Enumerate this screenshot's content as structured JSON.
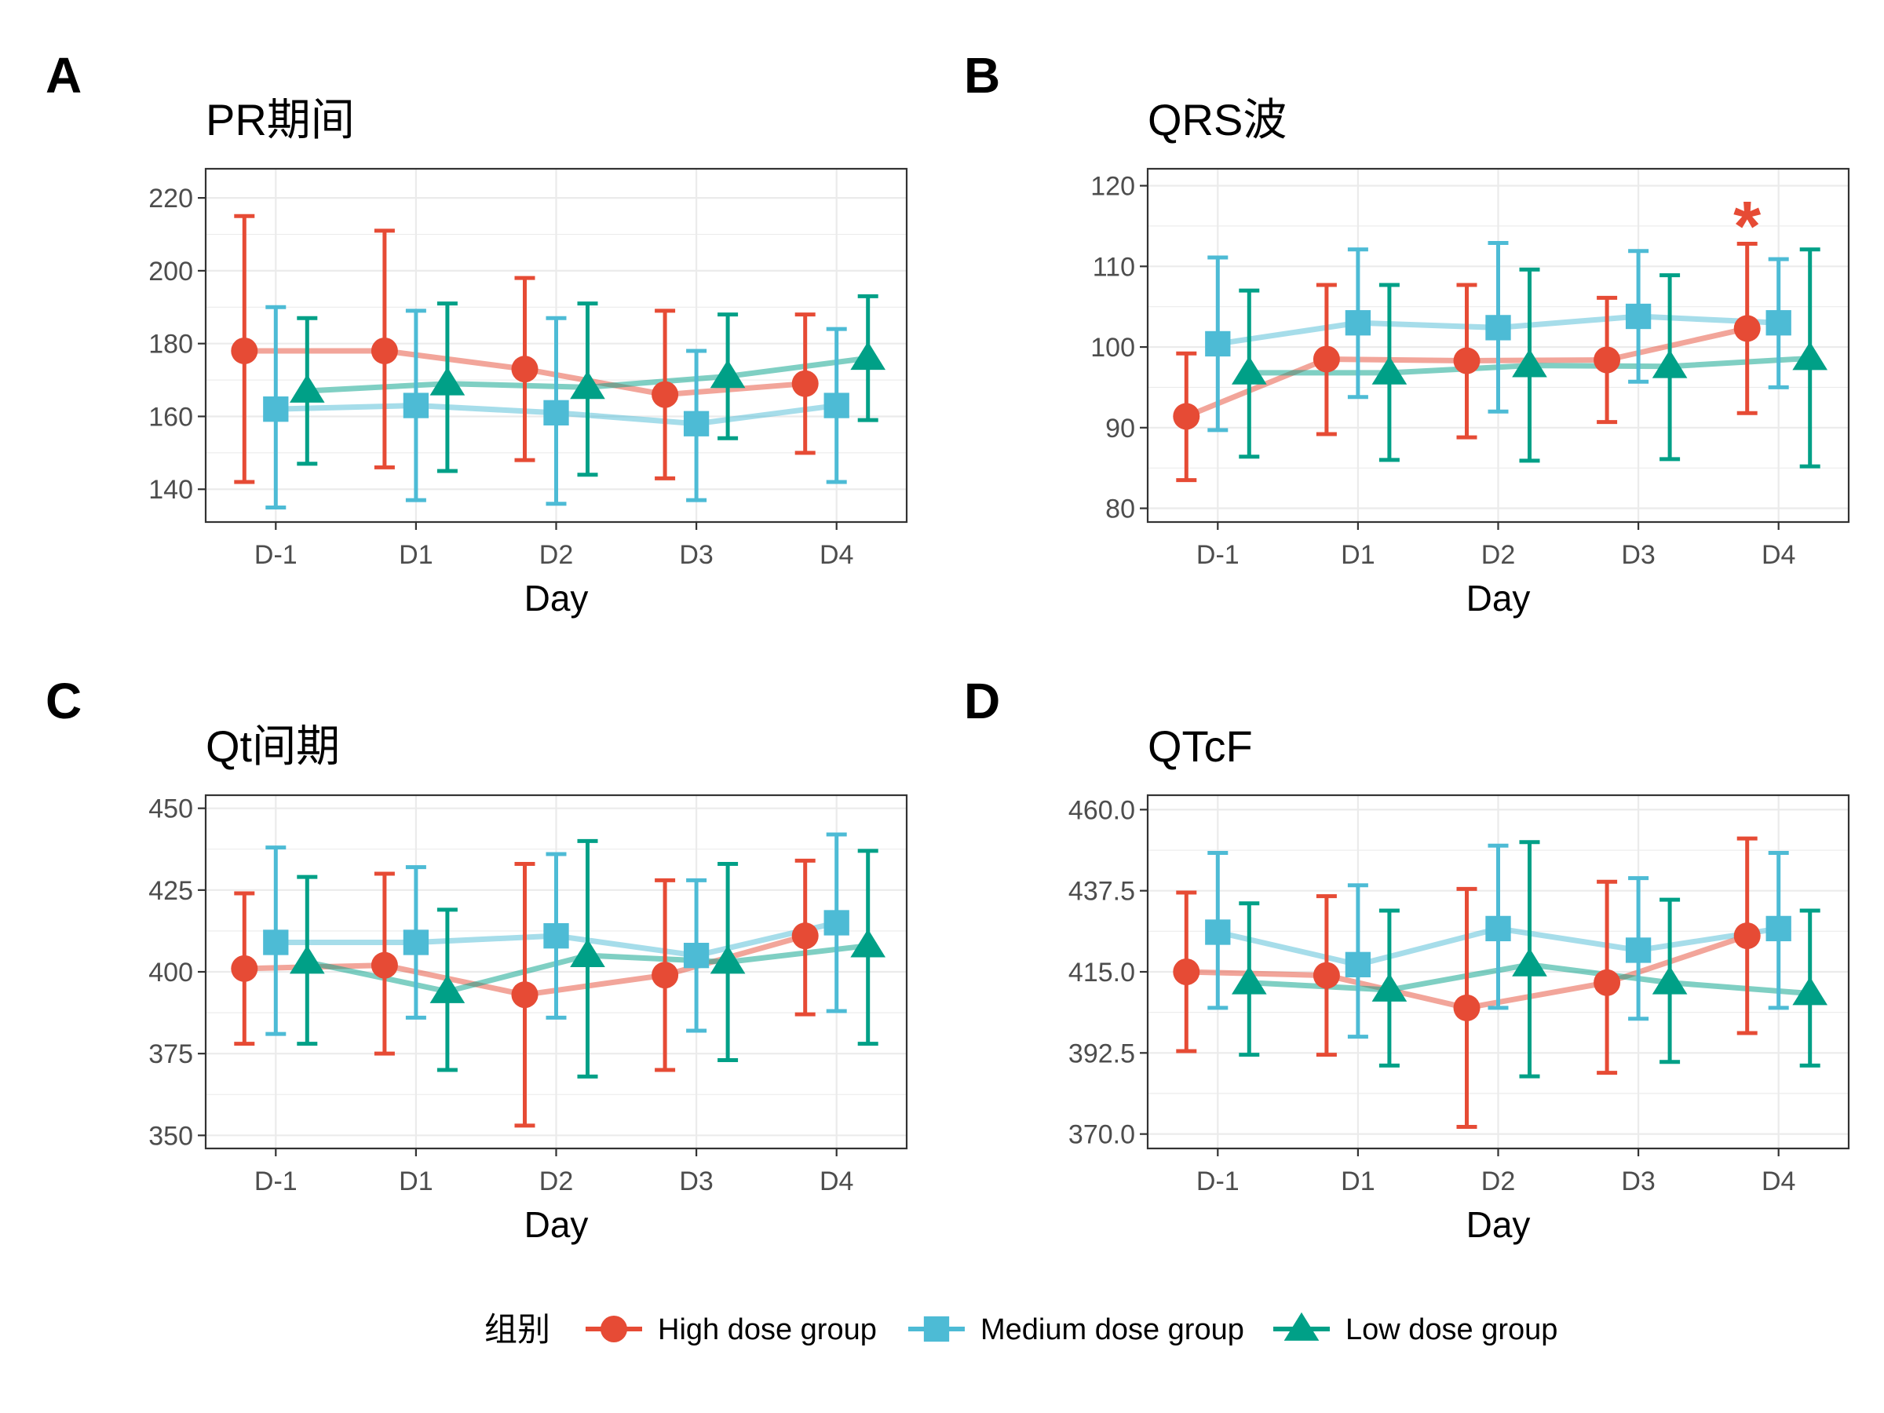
{
  "colors": {
    "High dose group": "#E64B35",
    "Medium dose group": "#4DBBD5",
    "Low dose group": "#00A087",
    "grid": "#EBEBEB",
    "border": "#333333"
  },
  "legend": {
    "title": "组别",
    "items": [
      {
        "label": "High dose group",
        "shape": "circle"
      },
      {
        "label": "Medium dose group",
        "shape": "square"
      },
      {
        "label": "Low dose group",
        "shape": "triangle"
      }
    ]
  },
  "chart_data": [
    {
      "type": "line",
      "panel": "A",
      "title": "PR期间",
      "xlabel": "Day",
      "ylabel": "",
      "categories": [
        "D-1",
        "D1",
        "D2",
        "D3",
        "D4"
      ],
      "ylim": [
        131,
        228
      ],
      "yticks": [
        140,
        160,
        180,
        200,
        220
      ],
      "ytick_labels": [
        "140",
        "160",
        "180",
        "200",
        "220"
      ],
      "grid": true,
      "series": [
        {
          "name": "High dose group",
          "values": [
            178,
            178,
            173,
            166,
            169
          ],
          "lower": [
            142,
            146,
            148,
            143,
            150
          ],
          "upper": [
            215,
            211,
            198,
            189,
            188
          ]
        },
        {
          "name": "Medium dose group",
          "values": [
            162,
            163,
            161,
            158,
            163
          ],
          "lower": [
            135,
            137,
            136,
            137,
            142
          ],
          "upper": [
            190,
            189,
            187,
            178,
            184
          ]
        },
        {
          "name": "Low dose group",
          "values": [
            167,
            169,
            168,
            171,
            176
          ],
          "lower": [
            147,
            145,
            144,
            154,
            159
          ],
          "upper": [
            187,
            191,
            191,
            188,
            193
          ]
        }
      ]
    },
    {
      "type": "line",
      "panel": "B",
      "title": "QRS波",
      "xlabel": "Day",
      "ylabel": "",
      "categories": [
        "D-1",
        "D1",
        "D2",
        "D3",
        "D4"
      ],
      "ylim": [
        78.3,
        122.1
      ],
      "yticks": [
        80,
        90,
        100,
        110,
        120
      ],
      "ytick_labels": [
        "80",
        "90",
        "100",
        "110",
        "120"
      ],
      "grid": true,
      "annotations": [
        {
          "text": "*",
          "category": "D4",
          "y": 115.5,
          "series": "High dose group"
        }
      ],
      "series": [
        {
          "name": "High dose group",
          "values": [
            91.4,
            98.5,
            98.3,
            98.4,
            102.3
          ],
          "lower": [
            83.5,
            89.2,
            88.8,
            90.7,
            91.8
          ],
          "upper": [
            99.2,
            107.7,
            107.7,
            106.1,
            112.8
          ]
        },
        {
          "name": "Medium dose group",
          "values": [
            100.4,
            103.0,
            102.4,
            103.8,
            103.0
          ],
          "lower": [
            89.7,
            93.8,
            92.0,
            95.7,
            95.0
          ],
          "upper": [
            111.1,
            112.1,
            112.9,
            111.9,
            110.9
          ]
        },
        {
          "name": "Low dose group",
          "values": [
            96.8,
            96.8,
            97.7,
            97.6,
            98.6
          ],
          "lower": [
            86.4,
            86.0,
            85.9,
            86.1,
            85.2
          ],
          "upper": [
            107.0,
            107.7,
            109.6,
            108.9,
            112.1
          ]
        }
      ]
    },
    {
      "type": "line",
      "panel": "C",
      "title": "Qt间期",
      "xlabel": "Day",
      "ylabel": "",
      "categories": [
        "D-1",
        "D1",
        "D2",
        "D3",
        "D4"
      ],
      "ylim": [
        346,
        454
      ],
      "yticks": [
        350,
        375,
        400,
        425,
        450
      ],
      "ytick_labels": [
        "350",
        "375",
        "400",
        "425",
        "450"
      ],
      "grid": true,
      "series": [
        {
          "name": "High dose group",
          "values": [
            401,
            402,
            393,
            399,
            411
          ],
          "lower": [
            378,
            375,
            353,
            370,
            387
          ],
          "upper": [
            424,
            430,
            433,
            428,
            434
          ]
        },
        {
          "name": "Medium dose group",
          "values": [
            409,
            409,
            411,
            405,
            415
          ],
          "lower": [
            381,
            386,
            386,
            382,
            388
          ],
          "upper": [
            438,
            432,
            436,
            428,
            442
          ]
        },
        {
          "name": "Low dose group",
          "values": [
            403,
            394,
            405,
            403,
            408
          ],
          "lower": [
            378,
            370,
            368,
            373,
            378
          ],
          "upper": [
            429,
            419,
            440,
            433,
            437
          ]
        }
      ]
    },
    {
      "type": "line",
      "panel": "D",
      "title": "QTcF",
      "xlabel": "Day",
      "ylabel": "",
      "categories": [
        "D-1",
        "D1",
        "D2",
        "D3",
        "D4"
      ],
      "ylim": [
        366,
        464
      ],
      "yticks": [
        370,
        392.5,
        415,
        437.5,
        460
      ],
      "ytick_labels": [
        "370.0",
        "392.5",
        "415.0",
        "437.5",
        "460.0"
      ],
      "grid": true,
      "series": [
        {
          "name": "High dose group",
          "values": [
            415,
            414,
            405,
            412,
            425
          ],
          "lower": [
            393,
            392,
            372,
            387,
            398
          ],
          "upper": [
            437,
            436,
            438,
            440,
            452
          ]
        },
        {
          "name": "Medium dose group",
          "values": [
            426,
            417,
            427,
            421,
            427
          ],
          "lower": [
            405,
            397,
            405,
            402,
            405
          ],
          "upper": [
            448,
            439,
            450,
            441,
            448
          ]
        },
        {
          "name": "Low dose group",
          "values": [
            412,
            410,
            417,
            412,
            409
          ],
          "lower": [
            392,
            389,
            386,
            390,
            389
          ],
          "upper": [
            434,
            432,
            451,
            435,
            432
          ]
        }
      ]
    }
  ]
}
